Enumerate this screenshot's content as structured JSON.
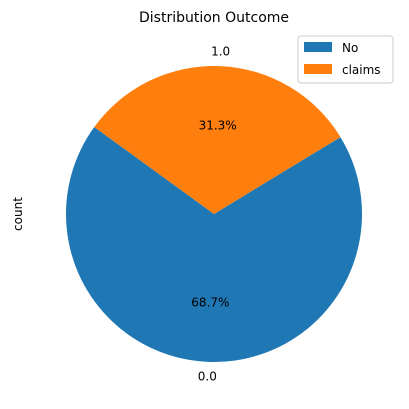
{
  "chart_data": {
    "type": "pie",
    "title": "Distribution Outcome",
    "ylabel": "count",
    "categories": [
      "0.0",
      "1.0"
    ],
    "values": [
      68.7,
      31.3
    ],
    "percent_labels": [
      "68.7%",
      "31.3%"
    ],
    "colors": [
      "#1f77b4",
      "#ff7f0e"
    ],
    "legend": {
      "location": "top-right",
      "entries": [
        "No",
        "claims"
      ]
    }
  }
}
